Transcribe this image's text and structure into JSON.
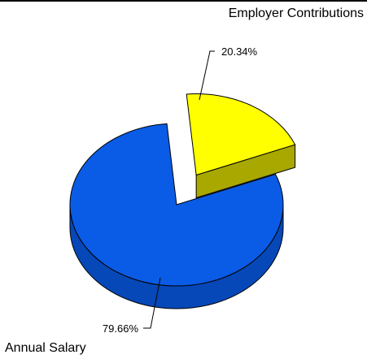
{
  "chart_data": {
    "type": "pie",
    "style": "3d-exploded",
    "slices": [
      {
        "name": "Annual Salary",
        "value": 79.66,
        "label": "79.66%",
        "color": "#0a5ce6",
        "side_color": "#0648b8"
      },
      {
        "name": "Employer Contributions",
        "value": 20.34,
        "label": "20.34%",
        "color": "#ffff00",
        "side_color": "#a8a800"
      }
    ],
    "legend_placement": "slice names at top-right and bottom-left",
    "exploded_slice": "Employer Contributions"
  }
}
